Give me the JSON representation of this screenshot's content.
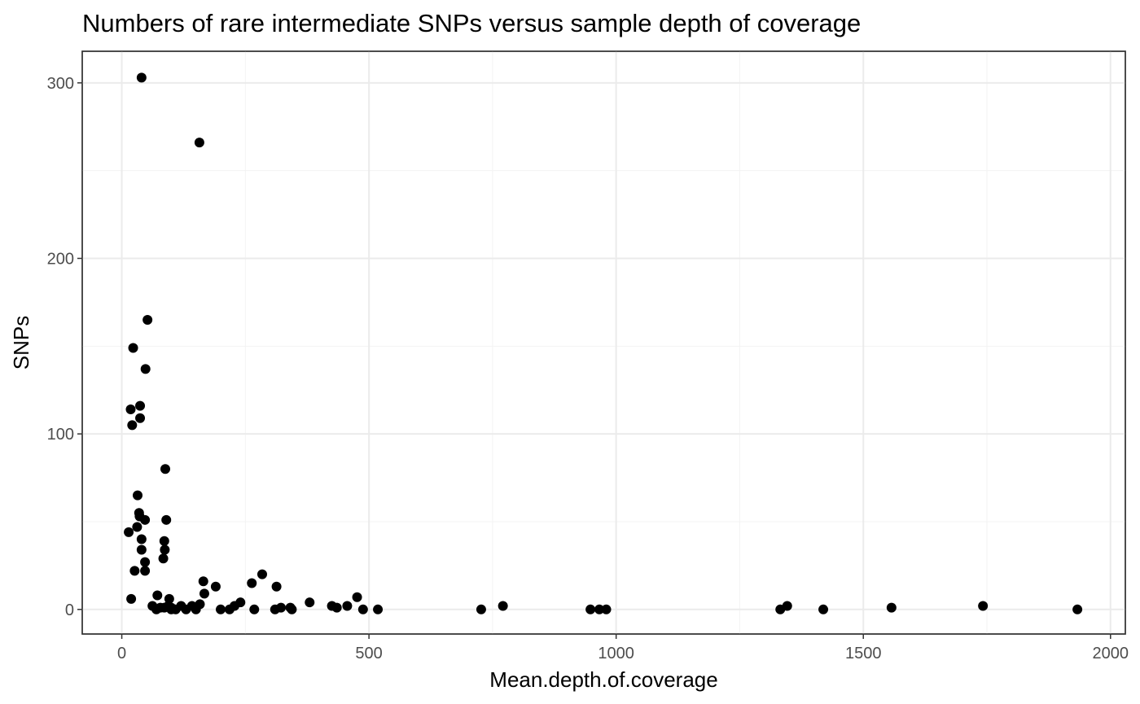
{
  "chart_data": {
    "type": "scatter",
    "title": "Numbers of rare intermediate SNPs versus sample depth of coverage",
    "xlabel": "Mean.depth.of.coverage",
    "ylabel": "SNPs",
    "xlim": [
      -80,
      2030
    ],
    "ylim": [
      -14,
      318
    ],
    "x_major_ticks": [
      0,
      500,
      1000,
      1500,
      2000
    ],
    "x_minor_ticks": [
      250,
      750,
      1250,
      1750
    ],
    "y_major_ticks": [
      0,
      100,
      200,
      300
    ],
    "y_minor_ticks": [
      50,
      150,
      250
    ],
    "x_tick_labels": [
      "0",
      "500",
      "1000",
      "1500",
      "2000"
    ],
    "y_tick_labels": [
      "0",
      "100",
      "200",
      "300"
    ],
    "grid": true,
    "point_color": "#000000",
    "points": [
      {
        "x": 40,
        "y": 303
      },
      {
        "x": 157,
        "y": 266
      },
      {
        "x": 52,
        "y": 165
      },
      {
        "x": 23,
        "y": 149
      },
      {
        "x": 48,
        "y": 137
      },
      {
        "x": 18,
        "y": 114
      },
      {
        "x": 37,
        "y": 116
      },
      {
        "x": 37,
        "y": 109
      },
      {
        "x": 21,
        "y": 105
      },
      {
        "x": 88,
        "y": 80
      },
      {
        "x": 32,
        "y": 65
      },
      {
        "x": 35,
        "y": 55
      },
      {
        "x": 36,
        "y": 53
      },
      {
        "x": 47,
        "y": 51
      },
      {
        "x": 90,
        "y": 51
      },
      {
        "x": 31,
        "y": 47
      },
      {
        "x": 14,
        "y": 44
      },
      {
        "x": 40,
        "y": 40
      },
      {
        "x": 86,
        "y": 39
      },
      {
        "x": 40,
        "y": 34
      },
      {
        "x": 87,
        "y": 34
      },
      {
        "x": 84,
        "y": 29
      },
      {
        "x": 47,
        "y": 27
      },
      {
        "x": 26,
        "y": 22
      },
      {
        "x": 47,
        "y": 22
      },
      {
        "x": 284,
        "y": 20
      },
      {
        "x": 165,
        "y": 16
      },
      {
        "x": 263,
        "y": 15
      },
      {
        "x": 190,
        "y": 13
      },
      {
        "x": 313,
        "y": 13
      },
      {
        "x": 167,
        "y": 9
      },
      {
        "x": 72,
        "y": 8
      },
      {
        "x": 476,
        "y": 7
      },
      {
        "x": 19,
        "y": 6
      },
      {
        "x": 96,
        "y": 6
      },
      {
        "x": 380,
        "y": 4
      },
      {
        "x": 240,
        "y": 4
      },
      {
        "x": 62,
        "y": 2
      },
      {
        "x": 78,
        "y": 1
      },
      {
        "x": 86,
        "y": 1
      },
      {
        "x": 94,
        "y": 2
      },
      {
        "x": 100,
        "y": 1
      },
      {
        "x": 109,
        "y": 0
      },
      {
        "x": 120,
        "y": 2
      },
      {
        "x": 130,
        "y": 0
      },
      {
        "x": 142,
        "y": 2
      },
      {
        "x": 150,
        "y": 0
      },
      {
        "x": 158,
        "y": 3
      },
      {
        "x": 70,
        "y": 0
      },
      {
        "x": 100,
        "y": 0
      },
      {
        "x": 200,
        "y": 0
      },
      {
        "x": 218,
        "y": 0
      },
      {
        "x": 228,
        "y": 2
      },
      {
        "x": 268,
        "y": 0
      },
      {
        "x": 310,
        "y": 0
      },
      {
        "x": 322,
        "y": 1
      },
      {
        "x": 341,
        "y": 1
      },
      {
        "x": 344,
        "y": 0
      },
      {
        "x": 425,
        "y": 2
      },
      {
        "x": 435,
        "y": 1
      },
      {
        "x": 456,
        "y": 2
      },
      {
        "x": 488,
        "y": 0
      },
      {
        "x": 518,
        "y": 0
      },
      {
        "x": 727,
        "y": 0
      },
      {
        "x": 771,
        "y": 2
      },
      {
        "x": 948,
        "y": 0
      },
      {
        "x": 966,
        "y": 0
      },
      {
        "x": 980,
        "y": 0
      },
      {
        "x": 1332,
        "y": 0
      },
      {
        "x": 1346,
        "y": 2
      },
      {
        "x": 1419,
        "y": 0
      },
      {
        "x": 1557,
        "y": 1
      },
      {
        "x": 1742,
        "y": 2
      },
      {
        "x": 1933,
        "y": 0
      }
    ]
  }
}
